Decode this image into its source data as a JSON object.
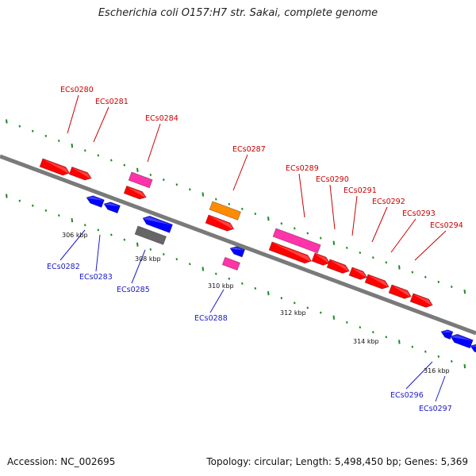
{
  "title": "Escherichia coli O157:H7 str. Sakai, complete genome",
  "accession_label": "Accession: NC_002695",
  "topology_label": "Topology: circular; Length: 5,498,450 bp; Genes: 5,369",
  "colors": {
    "backbone": "#7a7a7a",
    "forward_label": "#cc0000",
    "reverse_label": "#1a1acc",
    "tick": "#1e8a1e",
    "cds_red": "#ff0000",
    "cds_blue": "#0000ff",
    "cds_pink": "#ff33aa",
    "cds_orange": "#ff8c00",
    "cds_gray": "#666666"
  },
  "scale_ticks": [
    "306 kbp",
    "308 kbp",
    "310 kbp",
    "312 kbp",
    "314 kbp",
    "316 kbp"
  ],
  "forward_gene_labels": [
    "ECs0280",
    "ECs0281",
    "ECs0284",
    "ECs0287",
    "ECs0289",
    "ECs0290",
    "ECs0291",
    "ECs0292",
    "ECs0293",
    "ECs0294"
  ],
  "reverse_gene_labels": [
    "ECs0282",
    "ECs0283",
    "ECs0285",
    "ECs0288",
    "ECs0296",
    "ECs0297"
  ]
}
